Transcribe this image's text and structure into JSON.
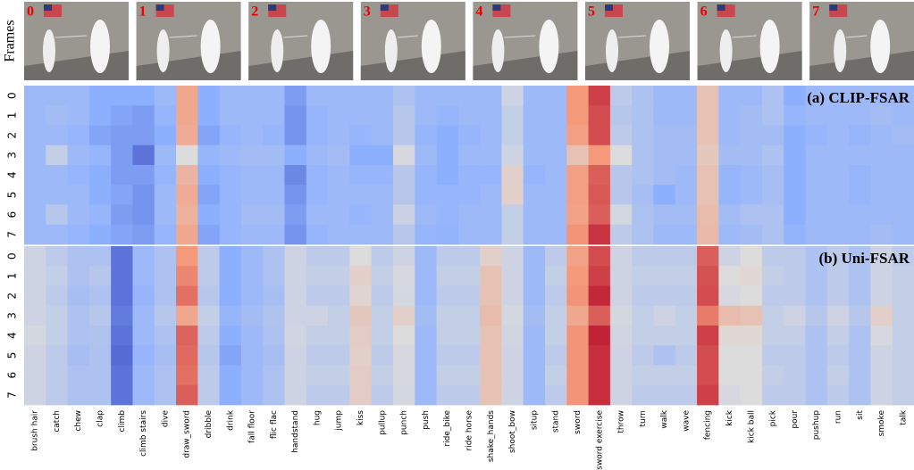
{
  "frames": {
    "label": "Frames",
    "indices": [
      0,
      1,
      2,
      3,
      4,
      5,
      6,
      7
    ]
  },
  "chart_data": {
    "type": "heatmap",
    "categories": [
      "brush hair",
      "catch",
      "chew",
      "clap",
      "climb",
      "climb stairs",
      "dive",
      "draw_sword",
      "dribble",
      "drink",
      "fall floor",
      "flic flac",
      "handstand",
      "hug",
      "jump",
      "kiss",
      "pullup",
      "punch",
      "push",
      "ride_bike",
      "ride horse",
      "shake_hands",
      "shoot_bow",
      "situp",
      "stand",
      "sword",
      "sword exercise",
      "throw",
      "turn",
      "walk",
      "wave",
      "fencing",
      "kick",
      "kick ball",
      "pick",
      "pour",
      "pushup",
      "run",
      "sit",
      "smoke",
      "talk"
    ],
    "rows": [
      0,
      1,
      2,
      3,
      4,
      5,
      6,
      7
    ],
    "colormap": [
      "#3b4cc0",
      "#8db0fe",
      "#dddcdc",
      "#f49a7b",
      "#b40426"
    ],
    "vlim": [
      0,
      1
    ],
    "panels": [
      {
        "title": "(a) CLIP-FSAR",
        "values": [
          [
            0.3,
            0.3,
            0.3,
            0.25,
            0.25,
            0.25,
            0.3,
            0.7,
            0.25,
            0.3,
            0.3,
            0.3,
            0.2,
            0.3,
            0.3,
            0.3,
            0.3,
            0.35,
            0.3,
            0.3,
            0.3,
            0.3,
            0.45,
            0.3,
            0.3,
            0.75,
            0.9,
            0.4,
            0.35,
            0.3,
            0.3,
            0.6,
            0.3,
            0.3,
            0.35,
            0.25,
            0.3,
            0.3,
            0.3,
            0.3,
            0.3
          ],
          [
            0.3,
            0.32,
            0.3,
            0.25,
            0.22,
            0.2,
            0.28,
            0.7,
            0.25,
            0.3,
            0.3,
            0.3,
            0.18,
            0.28,
            0.3,
            0.3,
            0.3,
            0.38,
            0.3,
            0.28,
            0.3,
            0.3,
            0.42,
            0.3,
            0.3,
            0.75,
            0.88,
            0.38,
            0.35,
            0.3,
            0.3,
            0.6,
            0.3,
            0.32,
            0.35,
            0.28,
            0.3,
            0.3,
            0.3,
            0.32,
            0.3
          ],
          [
            0.3,
            0.3,
            0.28,
            0.22,
            0.2,
            0.2,
            0.25,
            0.68,
            0.22,
            0.28,
            0.3,
            0.28,
            0.18,
            0.28,
            0.3,
            0.28,
            0.3,
            0.38,
            0.28,
            0.25,
            0.28,
            0.3,
            0.42,
            0.3,
            0.3,
            0.73,
            0.88,
            0.4,
            0.35,
            0.32,
            0.32,
            0.6,
            0.3,
            0.32,
            0.32,
            0.25,
            0.28,
            0.3,
            0.28,
            0.3,
            0.32
          ],
          [
            0.3,
            0.42,
            0.3,
            0.28,
            0.2,
            0.1,
            0.3,
            0.5,
            0.28,
            0.3,
            0.32,
            0.32,
            0.25,
            0.3,
            0.32,
            0.25,
            0.25,
            0.48,
            0.3,
            0.25,
            0.3,
            0.3,
            0.45,
            0.3,
            0.3,
            0.6,
            0.75,
            0.5,
            0.35,
            0.32,
            0.32,
            0.58,
            0.32,
            0.32,
            0.35,
            0.25,
            0.3,
            0.3,
            0.3,
            0.3,
            0.3
          ],
          [
            0.3,
            0.3,
            0.28,
            0.25,
            0.2,
            0.2,
            0.28,
            0.65,
            0.25,
            0.28,
            0.3,
            0.3,
            0.15,
            0.28,
            0.3,
            0.28,
            0.28,
            0.38,
            0.28,
            0.25,
            0.28,
            0.28,
            0.55,
            0.28,
            0.3,
            0.73,
            0.85,
            0.38,
            0.35,
            0.32,
            0.3,
            0.6,
            0.28,
            0.3,
            0.33,
            0.25,
            0.3,
            0.3,
            0.28,
            0.3,
            0.3
          ],
          [
            0.3,
            0.3,
            0.3,
            0.25,
            0.22,
            0.18,
            0.3,
            0.68,
            0.22,
            0.28,
            0.3,
            0.3,
            0.18,
            0.28,
            0.3,
            0.3,
            0.3,
            0.38,
            0.28,
            0.28,
            0.28,
            0.3,
            0.55,
            0.3,
            0.3,
            0.73,
            0.86,
            0.38,
            0.33,
            0.25,
            0.3,
            0.6,
            0.28,
            0.3,
            0.33,
            0.25,
            0.3,
            0.3,
            0.28,
            0.3,
            0.3
          ],
          [
            0.3,
            0.38,
            0.3,
            0.28,
            0.2,
            0.18,
            0.3,
            0.66,
            0.25,
            0.28,
            0.32,
            0.32,
            0.2,
            0.3,
            0.3,
            0.28,
            0.3,
            0.44,
            0.3,
            0.28,
            0.3,
            0.3,
            0.42,
            0.3,
            0.3,
            0.72,
            0.85,
            0.47,
            0.35,
            0.32,
            0.32,
            0.62,
            0.32,
            0.35,
            0.35,
            0.25,
            0.3,
            0.3,
            0.3,
            0.3,
            0.3
          ],
          [
            0.3,
            0.3,
            0.28,
            0.25,
            0.22,
            0.2,
            0.28,
            0.7,
            0.22,
            0.28,
            0.3,
            0.3,
            0.18,
            0.28,
            0.3,
            0.3,
            0.3,
            0.38,
            0.28,
            0.27,
            0.3,
            0.3,
            0.42,
            0.3,
            0.3,
            0.76,
            0.92,
            0.4,
            0.35,
            0.3,
            0.3,
            0.63,
            0.3,
            0.32,
            0.35,
            0.27,
            0.3,
            0.3,
            0.3,
            0.32,
            0.3
          ]
        ]
      },
      {
        "title": "(b) Uni-FSAR",
        "values": [
          [
            0.45,
            0.4,
            0.35,
            0.35,
            0.1,
            0.3,
            0.35,
            0.75,
            0.4,
            0.25,
            0.3,
            0.35,
            0.45,
            0.4,
            0.4,
            0.5,
            0.4,
            0.45,
            0.3,
            0.4,
            0.4,
            0.55,
            0.45,
            0.3,
            0.4,
            0.72,
            0.88,
            0.45,
            0.4,
            0.4,
            0.4,
            0.85,
            0.45,
            0.5,
            0.4,
            0.4,
            0.35,
            0.4,
            0.35,
            0.45,
            0.4
          ],
          [
            0.45,
            0.42,
            0.35,
            0.38,
            0.1,
            0.3,
            0.35,
            0.78,
            0.4,
            0.25,
            0.3,
            0.35,
            0.45,
            0.42,
            0.42,
            0.55,
            0.42,
            0.48,
            0.3,
            0.42,
            0.42,
            0.6,
            0.45,
            0.3,
            0.42,
            0.75,
            0.9,
            0.45,
            0.42,
            0.42,
            0.42,
            0.87,
            0.5,
            0.52,
            0.42,
            0.4,
            0.35,
            0.4,
            0.35,
            0.45,
            0.42
          ],
          [
            0.45,
            0.4,
            0.33,
            0.35,
            0.1,
            0.28,
            0.35,
            0.82,
            0.38,
            0.25,
            0.3,
            0.33,
            0.45,
            0.4,
            0.4,
            0.53,
            0.4,
            0.47,
            0.3,
            0.4,
            0.4,
            0.6,
            0.45,
            0.3,
            0.4,
            0.76,
            0.94,
            0.45,
            0.4,
            0.4,
            0.4,
            0.88,
            0.48,
            0.5,
            0.4,
            0.4,
            0.35,
            0.4,
            0.35,
            0.45,
            0.42
          ],
          [
            0.45,
            0.42,
            0.35,
            0.38,
            0.12,
            0.3,
            0.38,
            0.7,
            0.42,
            0.28,
            0.32,
            0.36,
            0.45,
            0.45,
            0.42,
            0.58,
            0.42,
            0.55,
            0.32,
            0.42,
            0.42,
            0.62,
            0.47,
            0.32,
            0.42,
            0.7,
            0.85,
            0.47,
            0.42,
            0.45,
            0.42,
            0.8,
            0.62,
            0.6,
            0.42,
            0.45,
            0.38,
            0.45,
            0.38,
            0.55,
            0.42
          ],
          [
            0.47,
            0.42,
            0.35,
            0.36,
            0.1,
            0.3,
            0.35,
            0.84,
            0.4,
            0.25,
            0.3,
            0.35,
            0.46,
            0.42,
            0.42,
            0.56,
            0.42,
            0.5,
            0.3,
            0.42,
            0.42,
            0.6,
            0.46,
            0.3,
            0.42,
            0.76,
            0.95,
            0.46,
            0.42,
            0.42,
            0.42,
            0.9,
            0.52,
            0.52,
            0.42,
            0.42,
            0.35,
            0.42,
            0.35,
            0.48,
            0.42
          ],
          [
            0.45,
            0.4,
            0.33,
            0.35,
            0.08,
            0.28,
            0.33,
            0.83,
            0.38,
            0.22,
            0.3,
            0.33,
            0.45,
            0.4,
            0.4,
            0.55,
            0.4,
            0.48,
            0.3,
            0.4,
            0.4,
            0.6,
            0.45,
            0.3,
            0.4,
            0.76,
            0.93,
            0.45,
            0.4,
            0.35,
            0.4,
            0.88,
            0.5,
            0.5,
            0.4,
            0.4,
            0.35,
            0.4,
            0.35,
            0.45,
            0.42
          ],
          [
            0.45,
            0.4,
            0.35,
            0.35,
            0.1,
            0.3,
            0.35,
            0.82,
            0.4,
            0.25,
            0.3,
            0.35,
            0.45,
            0.42,
            0.42,
            0.56,
            0.42,
            0.48,
            0.3,
            0.42,
            0.42,
            0.6,
            0.45,
            0.3,
            0.42,
            0.76,
            0.93,
            0.45,
            0.42,
            0.42,
            0.42,
            0.88,
            0.5,
            0.5,
            0.42,
            0.4,
            0.35,
            0.42,
            0.35,
            0.45,
            0.42
          ],
          [
            0.45,
            0.4,
            0.35,
            0.35,
            0.1,
            0.3,
            0.35,
            0.85,
            0.4,
            0.25,
            0.3,
            0.35,
            0.45,
            0.4,
            0.4,
            0.56,
            0.4,
            0.47,
            0.3,
            0.4,
            0.4,
            0.6,
            0.45,
            0.3,
            0.4,
            0.76,
            0.93,
            0.45,
            0.4,
            0.4,
            0.4,
            0.9,
            0.48,
            0.5,
            0.4,
            0.4,
            0.35,
            0.4,
            0.35,
            0.45,
            0.42
          ]
        ]
      }
    ]
  }
}
